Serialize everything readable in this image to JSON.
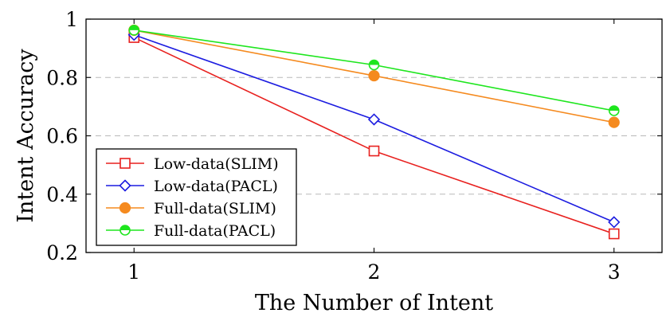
{
  "chart_data": {
    "type": "line",
    "title": "",
    "xlabel": "The Number of Intent",
    "ylabel": "Intent Accuracy",
    "x": [
      1,
      2,
      3
    ],
    "x_ticks": [
      "1",
      "2",
      "3"
    ],
    "xlim": [
      0.8,
      3.2
    ],
    "ylim": [
      0.2,
      1.0
    ],
    "y_ticks": [
      "0.2",
      "0.4",
      "0.6",
      "0.8",
      "1"
    ],
    "grid": "horizontal dashed",
    "legend_position": "bottom-left",
    "series": [
      {
        "name": "Low-data(SLIM)",
        "values": [
          0.937,
          0.548,
          0.264
        ],
        "color": "#e8211f",
        "marker": "square-open"
      },
      {
        "name": "Low-data(PACL)",
        "values": [
          0.946,
          0.656,
          0.304
        ],
        "color": "#1c1ce0",
        "marker": "diamond-open"
      },
      {
        "name": "Full-data(SLIM)",
        "values": [
          0.962,
          0.806,
          0.646
        ],
        "color": "#f58a1f",
        "marker": "circle-filled"
      },
      {
        "name": "Full-data(PACL)",
        "values": [
          0.962,
          0.843,
          0.686
        ],
        "color": "#1ee61e",
        "marker": "circle-half"
      }
    ]
  }
}
